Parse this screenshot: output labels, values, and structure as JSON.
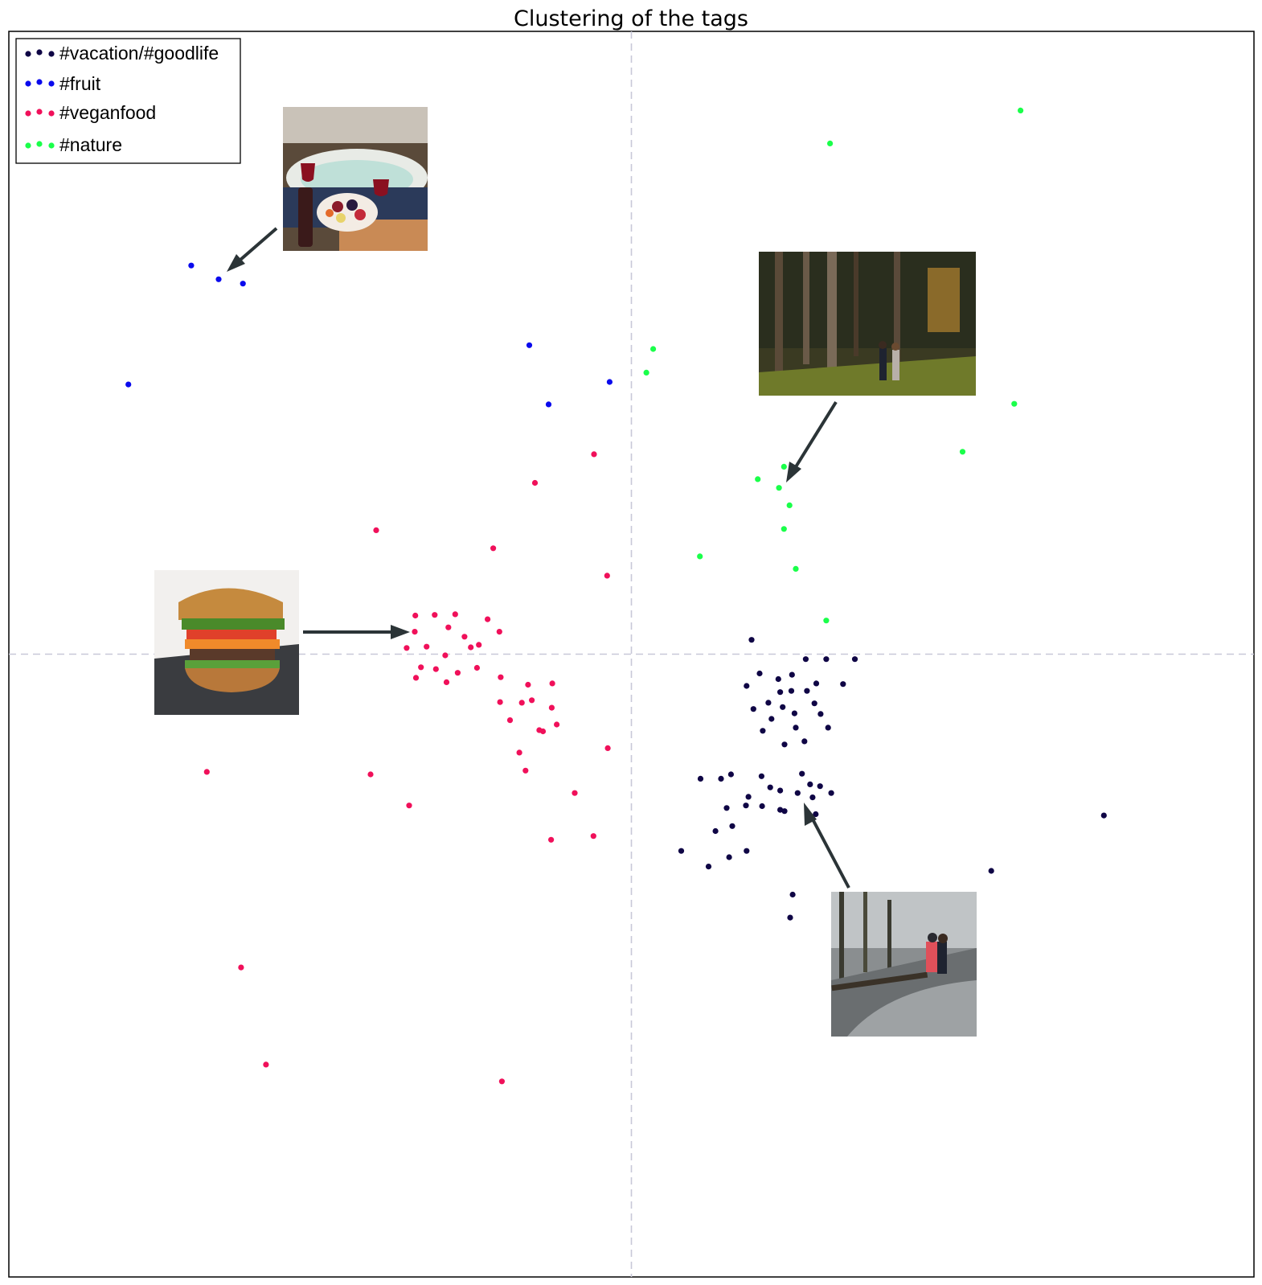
{
  "chart_data": {
    "type": "scatter",
    "title": "Clustering of the tags",
    "xlabel": "",
    "ylabel": "",
    "xlim": [
      -1,
      1
    ],
    "ylim": [
      -1,
      1
    ],
    "grid": "dashed axes at x=0 and y=0",
    "legend_placement": "top-left",
    "series": [
      {
        "name": "#vacation/#goodlife",
        "color": "#0f0545",
        "points": [
          [
            0.193,
            0.023
          ],
          [
            0.28,
            -0.008
          ],
          [
            0.313,
            -0.008
          ],
          [
            0.359,
            -0.008
          ],
          [
            0.258,
            -0.033
          ],
          [
            0.206,
            -0.031
          ],
          [
            0.236,
            -0.04
          ],
          [
            0.297,
            -0.047
          ],
          [
            0.34,
            -0.048
          ],
          [
            0.185,
            -0.051
          ],
          [
            0.239,
            -0.061
          ],
          [
            0.257,
            -0.059
          ],
          [
            0.282,
            -0.059
          ],
          [
            0.196,
            -0.088
          ],
          [
            0.225,
            -0.104
          ],
          [
            0.22,
            -0.078
          ],
          [
            0.243,
            -0.085
          ],
          [
            0.262,
            -0.095
          ],
          [
            0.294,
            -0.079
          ],
          [
            0.316,
            -0.118
          ],
          [
            0.264,
            -0.118
          ],
          [
            0.211,
            -0.123
          ],
          [
            0.246,
            -0.145
          ],
          [
            0.304,
            -0.096
          ],
          [
            0.278,
            -0.14
          ],
          [
            0.16,
            -0.193
          ],
          [
            0.111,
            -0.2
          ],
          [
            0.144,
            -0.2
          ],
          [
            0.209,
            -0.196
          ],
          [
            0.274,
            -0.192
          ],
          [
            0.287,
            -0.209
          ],
          [
            0.239,
            -0.219
          ],
          [
            0.153,
            -0.247
          ],
          [
            0.184,
            -0.243
          ],
          [
            0.267,
            -0.223
          ],
          [
            0.321,
            -0.223
          ],
          [
            0.291,
            -0.23
          ],
          [
            0.21,
            -0.244
          ],
          [
            0.239,
            -0.25
          ],
          [
            0.188,
            -0.229
          ],
          [
            0.296,
            -0.257
          ],
          [
            0.162,
            -0.276
          ],
          [
            0.135,
            -0.284
          ],
          [
            0.246,
            -0.252
          ],
          [
            0.08,
            -0.316
          ],
          [
            0.185,
            -0.316
          ],
          [
            0.157,
            -0.326
          ],
          [
            0.124,
            -0.341
          ],
          [
            0.259,
            -0.386
          ],
          [
            0.255,
            -0.423
          ],
          [
            0.578,
            -0.348
          ],
          [
            0.759,
            -0.259
          ],
          [
            0.223,
            -0.214
          ],
          [
            0.303,
            -0.212
          ]
        ]
      },
      {
        "name": "#fruit",
        "color": "#0a0aed",
        "points": [
          [
            -0.707,
            0.624
          ],
          [
            -0.663,
            0.602
          ],
          [
            -0.624,
            0.595
          ],
          [
            -0.808,
            0.433
          ],
          [
            -0.164,
            0.496
          ],
          [
            -0.035,
            0.437
          ],
          [
            -0.133,
            0.401
          ]
        ]
      },
      {
        "name": "#veganfood",
        "color": "#f0105a",
        "points": [
          [
            -0.06,
            0.321
          ],
          [
            -0.155,
            0.275
          ],
          [
            -0.41,
            0.199
          ],
          [
            -0.222,
            0.17
          ],
          [
            -0.039,
            0.126
          ],
          [
            -0.347,
            0.062
          ],
          [
            -0.316,
            0.063
          ],
          [
            -0.283,
            0.064
          ],
          [
            -0.348,
            0.036
          ],
          [
            -0.294,
            0.043
          ],
          [
            -0.268,
            0.028
          ],
          [
            -0.361,
            0.01
          ],
          [
            -0.329,
            0.012
          ],
          [
            -0.299,
            -0.002
          ],
          [
            -0.338,
            -0.021
          ],
          [
            -0.314,
            -0.024
          ],
          [
            -0.279,
            -0.03
          ],
          [
            -0.248,
            -0.022
          ],
          [
            -0.21,
            -0.037
          ],
          [
            -0.245,
            0.015
          ],
          [
            -0.231,
            0.056
          ],
          [
            -0.212,
            0.036
          ],
          [
            -0.258,
            0.011
          ],
          [
            -0.346,
            -0.038
          ],
          [
            -0.297,
            -0.045
          ],
          [
            -0.166,
            -0.049
          ],
          [
            -0.127,
            -0.047
          ],
          [
            -0.16,
            -0.074
          ],
          [
            -0.211,
            -0.077
          ],
          [
            -0.176,
            -0.078
          ],
          [
            -0.128,
            -0.086
          ],
          [
            -0.195,
            -0.106
          ],
          [
            -0.148,
            -0.122
          ],
          [
            -0.142,
            -0.124
          ],
          [
            -0.17,
            -0.187
          ],
          [
            -0.038,
            -0.151
          ],
          [
            -0.682,
            -0.189
          ],
          [
            -0.419,
            -0.193
          ],
          [
            -0.357,
            -0.243
          ],
          [
            -0.091,
            -0.223
          ],
          [
            -0.129,
            -0.298
          ],
          [
            -0.061,
            -0.292
          ],
          [
            -0.627,
            -0.503
          ],
          [
            -0.587,
            -0.659
          ],
          [
            -0.208,
            -0.686
          ],
          [
            -0.18,
            -0.158
          ],
          [
            -0.12,
            -0.113
          ]
        ]
      },
      {
        "name": "#nature",
        "color": "#1aff4a",
        "points": [
          [
            0.625,
            0.873
          ],
          [
            0.319,
            0.82
          ],
          [
            0.035,
            0.49
          ],
          [
            0.024,
            0.452
          ],
          [
            0.615,
            0.402
          ],
          [
            0.532,
            0.325
          ],
          [
            0.245,
            0.301
          ],
          [
            0.203,
            0.281
          ],
          [
            0.237,
            0.267
          ],
          [
            0.254,
            0.239
          ],
          [
            0.245,
            0.201
          ],
          [
            0.11,
            0.157
          ],
          [
            0.264,
            0.137
          ],
          [
            0.313,
            0.054
          ]
        ]
      }
    ]
  },
  "annotations": [
    {
      "image": "bathtub-fruit-platter-photo"
    },
    {
      "image": "forest-couple-walking-photo"
    },
    {
      "image": "veggie-sandwich-photo"
    },
    {
      "image": "riverbank-couple-photo"
    }
  ]
}
